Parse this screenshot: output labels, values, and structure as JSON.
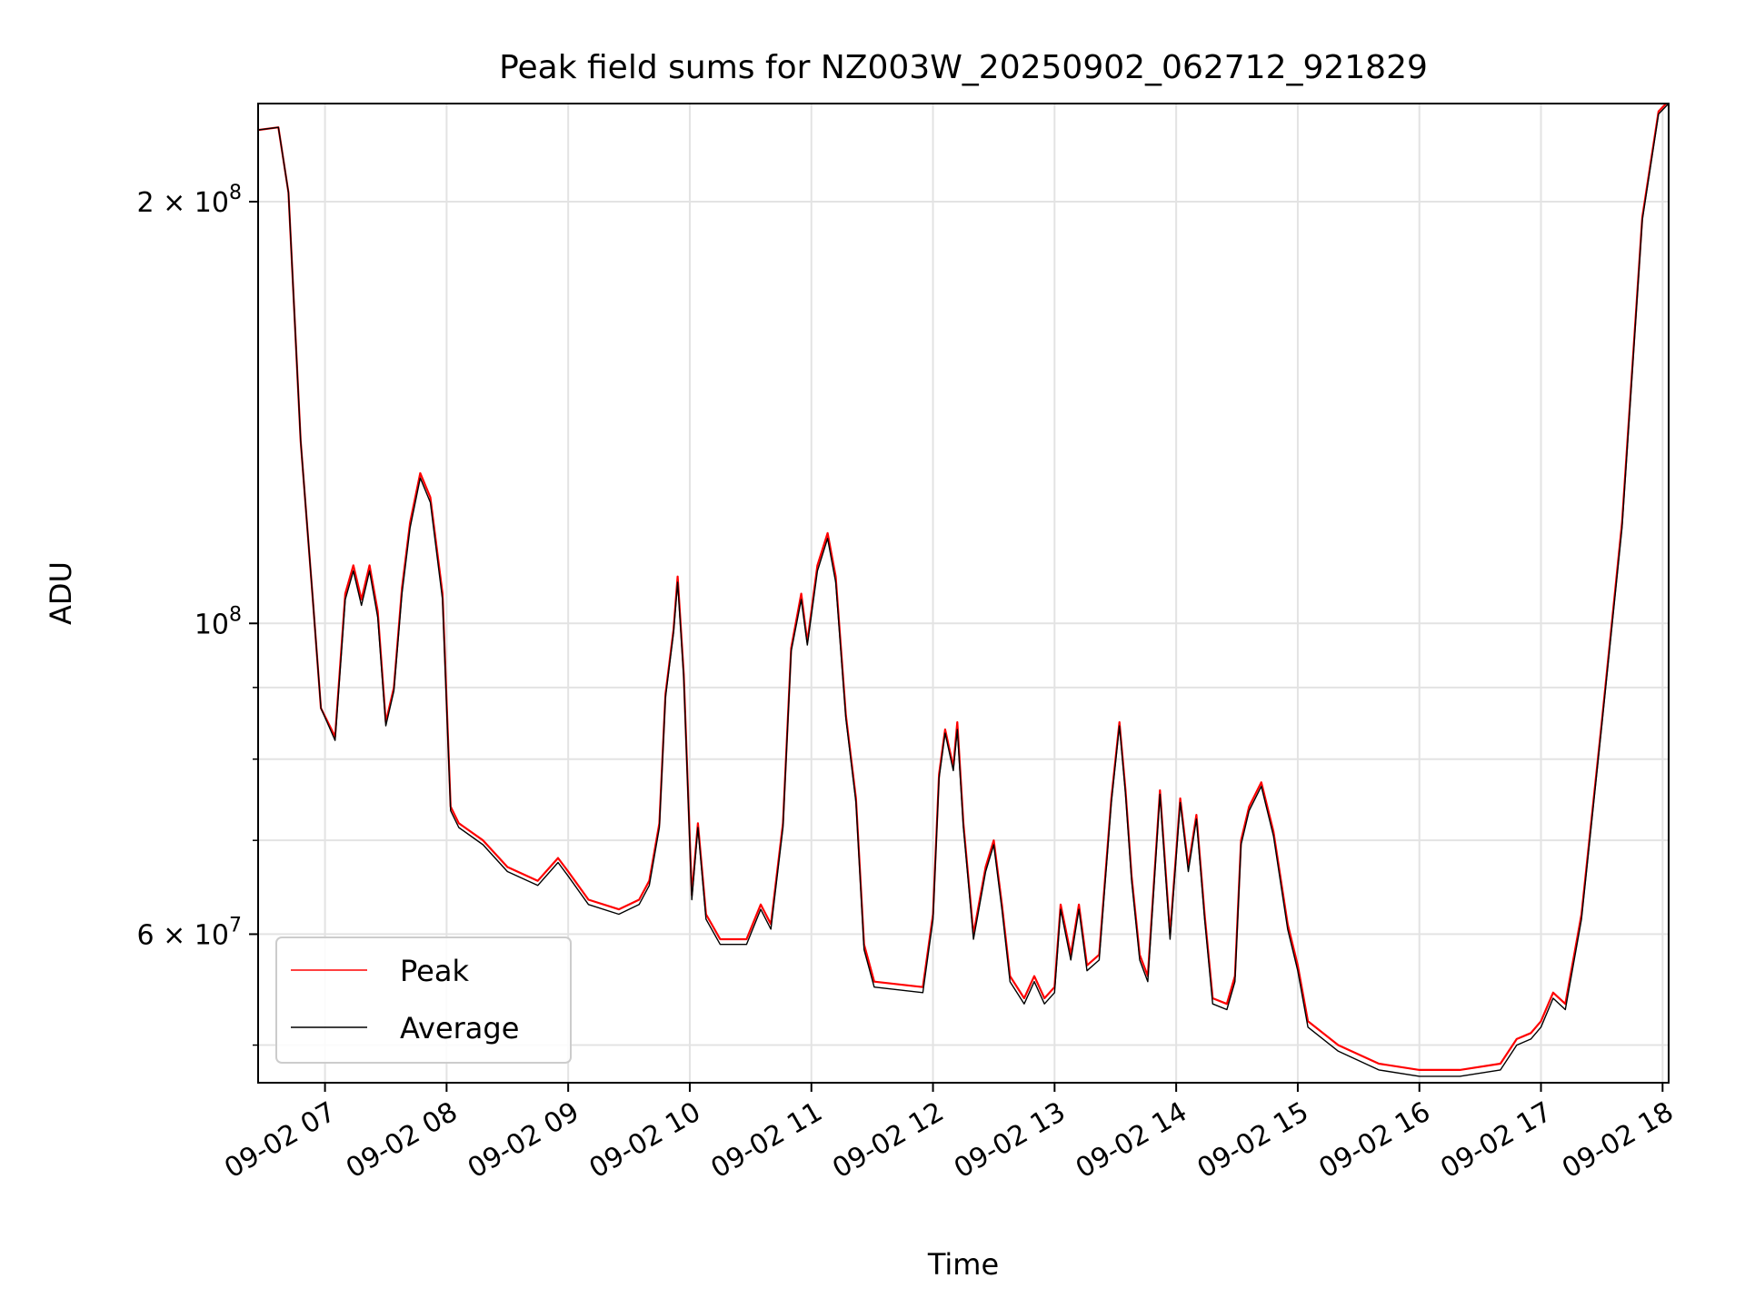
{
  "chart_data": {
    "type": "line",
    "title": "Peak field sums for NZ003W_20250902_062712_921829",
    "xlabel": "Time",
    "ylabel": "ADU",
    "yscale": "log",
    "ylim": [
      47000000,
      235000000
    ],
    "xlim": [
      "09-02 06:27",
      "09-02 18:03"
    ],
    "grid": true,
    "legend_position": "lower-left",
    "x_ticks": [
      "09-02 07",
      "09-02 08",
      "09-02 09",
      "09-02 10",
      "09-02 11",
      "09-02 12",
      "09-02 13",
      "09-02 14",
      "09-02 15",
      "09-02 16",
      "09-02 17",
      "09-02 18"
    ],
    "y_ticks": [
      {
        "label": "2 × 10^8",
        "base": "2 × 10",
        "exp": "8",
        "value": 200000000
      },
      {
        "label": "10^8",
        "base": "10",
        "exp": "8",
        "value": 100000000
      },
      {
        "label": "6 × 10^7",
        "base": "6 × 10",
        "exp": "7",
        "value": 60000000
      }
    ],
    "series": [
      {
        "name": "Peak",
        "color": "#ff0000",
        "points": [
          [
            "09-02 06:27",
            225000000.0
          ],
          [
            "09-02 06:37",
            226000000.0
          ],
          [
            "09-02 06:42",
            203000000.0
          ],
          [
            "09-02 06:48",
            135000000.0
          ],
          [
            "09-02 06:54",
            104000000.0
          ],
          [
            "09-02 06:58",
            87000000.0
          ],
          [
            "09-02 07:05",
            83000000.0
          ],
          [
            "09-02 07:10",
            105000000.0
          ],
          [
            "09-02 07:14",
            110000000.0
          ],
          [
            "09-02 07:18",
            104000000.0
          ],
          [
            "09-02 07:22",
            110000000.0
          ],
          [
            "09-02 07:26",
            102000000.0
          ],
          [
            "09-02 07:30",
            85000000.0
          ],
          [
            "09-02 07:34",
            90000000.0
          ],
          [
            "09-02 07:38",
            106000000.0
          ],
          [
            "09-02 07:42",
            118000000.0
          ],
          [
            "09-02 07:47",
            128000000.0
          ],
          [
            "09-02 07:52",
            123000000.0
          ],
          [
            "09-02 07:58",
            105000000.0
          ],
          [
            "09-02 08:02",
            74000000.0
          ],
          [
            "09-02 08:06",
            72000000.0
          ],
          [
            "09-02 08:18",
            70000000.0
          ],
          [
            "09-02 08:30",
            67000000.0
          ],
          [
            "09-02 08:45",
            65500000.0
          ],
          [
            "09-02 08:55",
            68000000.0
          ],
          [
            "09-02 09:00",
            66500000.0
          ],
          [
            "09-02 09:10",
            63500000.0
          ],
          [
            "09-02 09:25",
            62500000.0
          ],
          [
            "09-02 09:35",
            63500000.0
          ],
          [
            "09-02 09:40",
            65500000.0
          ],
          [
            "09-02 09:45",
            72000000.0
          ],
          [
            "09-02 09:48",
            89000000.0
          ],
          [
            "09-02 09:52",
            99000000.0
          ],
          [
            "09-02 09:54",
            108000000.0
          ],
          [
            "09-02 09:57",
            92000000.0
          ],
          [
            "09-02 10:01",
            64000000.0
          ],
          [
            "09-02 10:04",
            72000000.0
          ],
          [
            "09-02 10:08",
            62000000.0
          ],
          [
            "09-02 10:15",
            59500000.0
          ],
          [
            "09-02 10:28",
            59500000.0
          ],
          [
            "09-02 10:35",
            63000000.0
          ],
          [
            "09-02 10:40",
            61000000.0
          ],
          [
            "09-02 10:46",
            72000000.0
          ],
          [
            "09-02 10:50",
            96000000.0
          ],
          [
            "09-02 10:55",
            105000000.0
          ],
          [
            "09-02 10:58",
            97000000.0
          ],
          [
            "09-02 11:03",
            110000000.0
          ],
          [
            "09-02 11:08",
            116000000.0
          ],
          [
            "09-02 11:12",
            108000000.0
          ],
          [
            "09-02 11:17",
            86000000.0
          ],
          [
            "09-02 11:22",
            75000000.0
          ],
          [
            "09-02 11:26",
            59000000.0
          ],
          [
            "09-02 11:31",
            55500000.0
          ],
          [
            "09-02 11:55",
            55000000.0
          ],
          [
            "09-02 12:00",
            62000000.0
          ],
          [
            "09-02 12:03",
            78000000.0
          ],
          [
            "09-02 12:06",
            84000000.0
          ],
          [
            "09-02 12:10",
            79000000.0
          ],
          [
            "09-02 12:12",
            85000000.0
          ],
          [
            "09-02 12:15",
            72000000.0
          ],
          [
            "09-02 12:20",
            60000000.0
          ],
          [
            "09-02 12:26",
            67000000.0
          ],
          [
            "09-02 12:30",
            70000000.0
          ],
          [
            "09-02 12:34",
            63000000.0
          ],
          [
            "09-02 12:38",
            56000000.0
          ],
          [
            "09-02 12:45",
            54000000.0
          ],
          [
            "09-02 12:50",
            56000000.0
          ],
          [
            "09-02 12:55",
            54000000.0
          ],
          [
            "09-02 13:00",
            55000000.0
          ],
          [
            "09-02 13:03",
            63000000.0
          ],
          [
            "09-02 13:08",
            58000000.0
          ],
          [
            "09-02 13:12",
            63000000.0
          ],
          [
            "09-02 13:16",
            57000000.0
          ],
          [
            "09-02 13:22",
            58000000.0
          ],
          [
            "09-02 13:28",
            75000000.0
          ],
          [
            "09-02 13:32",
            85000000.0
          ],
          [
            "09-02 13:35",
            76000000.0
          ],
          [
            "09-02 13:38",
            66000000.0
          ],
          [
            "09-02 13:42",
            58000000.0
          ],
          [
            "09-02 13:46",
            56000000.0
          ],
          [
            "09-02 13:52",
            76000000.0
          ],
          [
            "09-02 13:57",
            60000000.0
          ],
          [
            "09-02 14:02",
            75000000.0
          ],
          [
            "09-02 14:06",
            67000000.0
          ],
          [
            "09-02 14:10",
            73000000.0
          ],
          [
            "09-02 14:14",
            62000000.0
          ],
          [
            "09-02 14:18",
            54000000.0
          ],
          [
            "09-02 14:25",
            53500000.0
          ],
          [
            "09-02 14:29",
            56000000.0
          ],
          [
            "09-02 14:32",
            70000000.0
          ],
          [
            "09-02 14:36",
            74000000.0
          ],
          [
            "09-02 14:42",
            77000000.0
          ],
          [
            "09-02 14:48",
            71000000.0
          ],
          [
            "09-02 14:55",
            61000000.0
          ],
          [
            "09-02 15:00",
            57000000.0
          ],
          [
            "09-02 15:05",
            52000000.0
          ],
          [
            "09-02 15:20",
            50000000.0
          ],
          [
            "09-02 15:40",
            48500000.0
          ],
          [
            "09-02 16:00",
            48000000.0
          ],
          [
            "09-02 16:20",
            48000000.0
          ],
          [
            "09-02 16:40",
            48500000.0
          ],
          [
            "09-02 16:48",
            50500000.0
          ],
          [
            "09-02 16:55",
            51000000.0
          ],
          [
            "09-02 17:00",
            52000000.0
          ],
          [
            "09-02 17:06",
            54500000.0
          ],
          [
            "09-02 17:12",
            53500000.0
          ],
          [
            "09-02 17:20",
            62000000.0
          ],
          [
            "09-02 17:30",
            85000000.0
          ],
          [
            "09-02 17:40",
            118000000.0
          ],
          [
            "09-02 17:50",
            195000000.0
          ],
          [
            "09-02 17:58",
            232000000.0
          ],
          [
            "09-02 18:03",
            236000000.0
          ]
        ]
      },
      {
        "name": "Average",
        "color": "#000000",
        "points": [
          [
            "09-02 06:27",
            225000000.0
          ],
          [
            "09-02 06:37",
            226000000.0
          ],
          [
            "09-02 06:42",
            203000000.0
          ],
          [
            "09-02 06:48",
            135000000.0
          ],
          [
            "09-02 06:54",
            104000000.0
          ],
          [
            "09-02 06:58",
            87000000.0
          ],
          [
            "09-02 07:05",
            82500000.0
          ],
          [
            "09-02 07:10",
            104000000.0
          ],
          [
            "09-02 07:14",
            109000000.0
          ],
          [
            "09-02 07:18",
            103000000.0
          ],
          [
            "09-02 07:22",
            109000000.0
          ],
          [
            "09-02 07:26",
            101000000.0
          ],
          [
            "09-02 07:30",
            84500000.0
          ],
          [
            "09-02 07:34",
            89500000.0
          ],
          [
            "09-02 07:38",
            105000000.0
          ],
          [
            "09-02 07:42",
            117000000.0
          ],
          [
            "09-02 07:47",
            127000000.0
          ],
          [
            "09-02 07:52",
            122000000.0
          ],
          [
            "09-02 07:58",
            104000000.0
          ],
          [
            "09-02 08:02",
            73500000.0
          ],
          [
            "09-02 08:06",
            71500000.0
          ],
          [
            "09-02 08:18",
            69500000.0
          ],
          [
            "09-02 08:30",
            66500000.0
          ],
          [
            "09-02 08:45",
            65000000.0
          ],
          [
            "09-02 08:55",
            67500000.0
          ],
          [
            "09-02 09:00",
            66000000.0
          ],
          [
            "09-02 09:10",
            63000000.0
          ],
          [
            "09-02 09:25",
            62000000.0
          ],
          [
            "09-02 09:35",
            63000000.0
          ],
          [
            "09-02 09:40",
            65000000.0
          ],
          [
            "09-02 09:45",
            71500000.0
          ],
          [
            "09-02 09:48",
            88500000.0
          ],
          [
            "09-02 09:52",
            98500000.0
          ],
          [
            "09-02 09:54",
            107000000.0
          ],
          [
            "09-02 09:57",
            91500000.0
          ],
          [
            "09-02 10:01",
            63500000.0
          ],
          [
            "09-02 10:04",
            71500000.0
          ],
          [
            "09-02 10:08",
            61500000.0
          ],
          [
            "09-02 10:15",
            59000000.0
          ],
          [
            "09-02 10:28",
            59000000.0
          ],
          [
            "09-02 10:35",
            62500000.0
          ],
          [
            "09-02 10:40",
            60500000.0
          ],
          [
            "09-02 10:46",
            71500000.0
          ],
          [
            "09-02 10:50",
            95500000.0
          ],
          [
            "09-02 10:55",
            104000000.0
          ],
          [
            "09-02 10:58",
            96500000.0
          ],
          [
            "09-02 11:03",
            109000000.0
          ],
          [
            "09-02 11:08",
            115000000.0
          ],
          [
            "09-02 11:12",
            107000000.0
          ],
          [
            "09-02 11:17",
            85500000.0
          ],
          [
            "09-02 11:22",
            74500000.0
          ],
          [
            "09-02 11:26",
            58500000.0
          ],
          [
            "09-02 11:31",
            55000000.0
          ],
          [
            "09-02 11:55",
            54500000.0
          ],
          [
            "09-02 12:00",
            61500000.0
          ],
          [
            "09-02 12:03",
            77500000.0
          ],
          [
            "09-02 12:06",
            83500000.0
          ],
          [
            "09-02 12:10",
            78500000.0
          ],
          [
            "09-02 12:12",
            84000000.0
          ],
          [
            "09-02 12:15",
            71500000.0
          ],
          [
            "09-02 12:20",
            59500000.0
          ],
          [
            "09-02 12:26",
            66500000.0
          ],
          [
            "09-02 12:30",
            69500000.0
          ],
          [
            "09-02 12:34",
            62500000.0
          ],
          [
            "09-02 12:38",
            55500000.0
          ],
          [
            "09-02 12:45",
            53500000.0
          ],
          [
            "09-02 12:50",
            55500000.0
          ],
          [
            "09-02 12:55",
            53500000.0
          ],
          [
            "09-02 13:00",
            54500000.0
          ],
          [
            "09-02 13:03",
            62500000.0
          ],
          [
            "09-02 13:08",
            57500000.0
          ],
          [
            "09-02 13:12",
            62500000.0
          ],
          [
            "09-02 13:16",
            56500000.0
          ],
          [
            "09-02 13:22",
            57500000.0
          ],
          [
            "09-02 13:28",
            74500000.0
          ],
          [
            "09-02 13:32",
            84500000.0
          ],
          [
            "09-02 13:35",
            75500000.0
          ],
          [
            "09-02 13:38",
            65500000.0
          ],
          [
            "09-02 13:42",
            57500000.0
          ],
          [
            "09-02 13:46",
            55500000.0
          ],
          [
            "09-02 13:52",
            75500000.0
          ],
          [
            "09-02 13:57",
            59500000.0
          ],
          [
            "09-02 14:02",
            74500000.0
          ],
          [
            "09-02 14:06",
            66500000.0
          ],
          [
            "09-02 14:10",
            72500000.0
          ],
          [
            "09-02 14:14",
            61500000.0
          ],
          [
            "09-02 14:18",
            53500000.0
          ],
          [
            "09-02 14:25",
            53000000.0
          ],
          [
            "09-02 14:29",
            55500000.0
          ],
          [
            "09-02 14:32",
            69500000.0
          ],
          [
            "09-02 14:36",
            73500000.0
          ],
          [
            "09-02 14:42",
            76500000.0
          ],
          [
            "09-02 14:48",
            70500000.0
          ],
          [
            "09-02 14:55",
            60500000.0
          ],
          [
            "09-02 15:00",
            56500000.0
          ],
          [
            "09-02 15:05",
            51500000.0
          ],
          [
            "09-02 15:20",
            49500000.0
          ],
          [
            "09-02 15:40",
            48000000.0
          ],
          [
            "09-02 16:00",
            47500000.0
          ],
          [
            "09-02 16:20",
            47500000.0
          ],
          [
            "09-02 16:40",
            48000000.0
          ],
          [
            "09-02 16:48",
            50000000.0
          ],
          [
            "09-02 16:55",
            50500000.0
          ],
          [
            "09-02 17:00",
            51500000.0
          ],
          [
            "09-02 17:06",
            54000000.0
          ],
          [
            "09-02 17:12",
            53000000.0
          ],
          [
            "09-02 17:20",
            61500000.0
          ],
          [
            "09-02 17:30",
            84500000.0
          ],
          [
            "09-02 17:40",
            117000000.0
          ],
          [
            "09-02 17:50",
            194000000.0
          ],
          [
            "09-02 17:58",
            231000000.0
          ],
          [
            "09-02 18:03",
            235000000.0
          ]
        ]
      }
    ]
  }
}
